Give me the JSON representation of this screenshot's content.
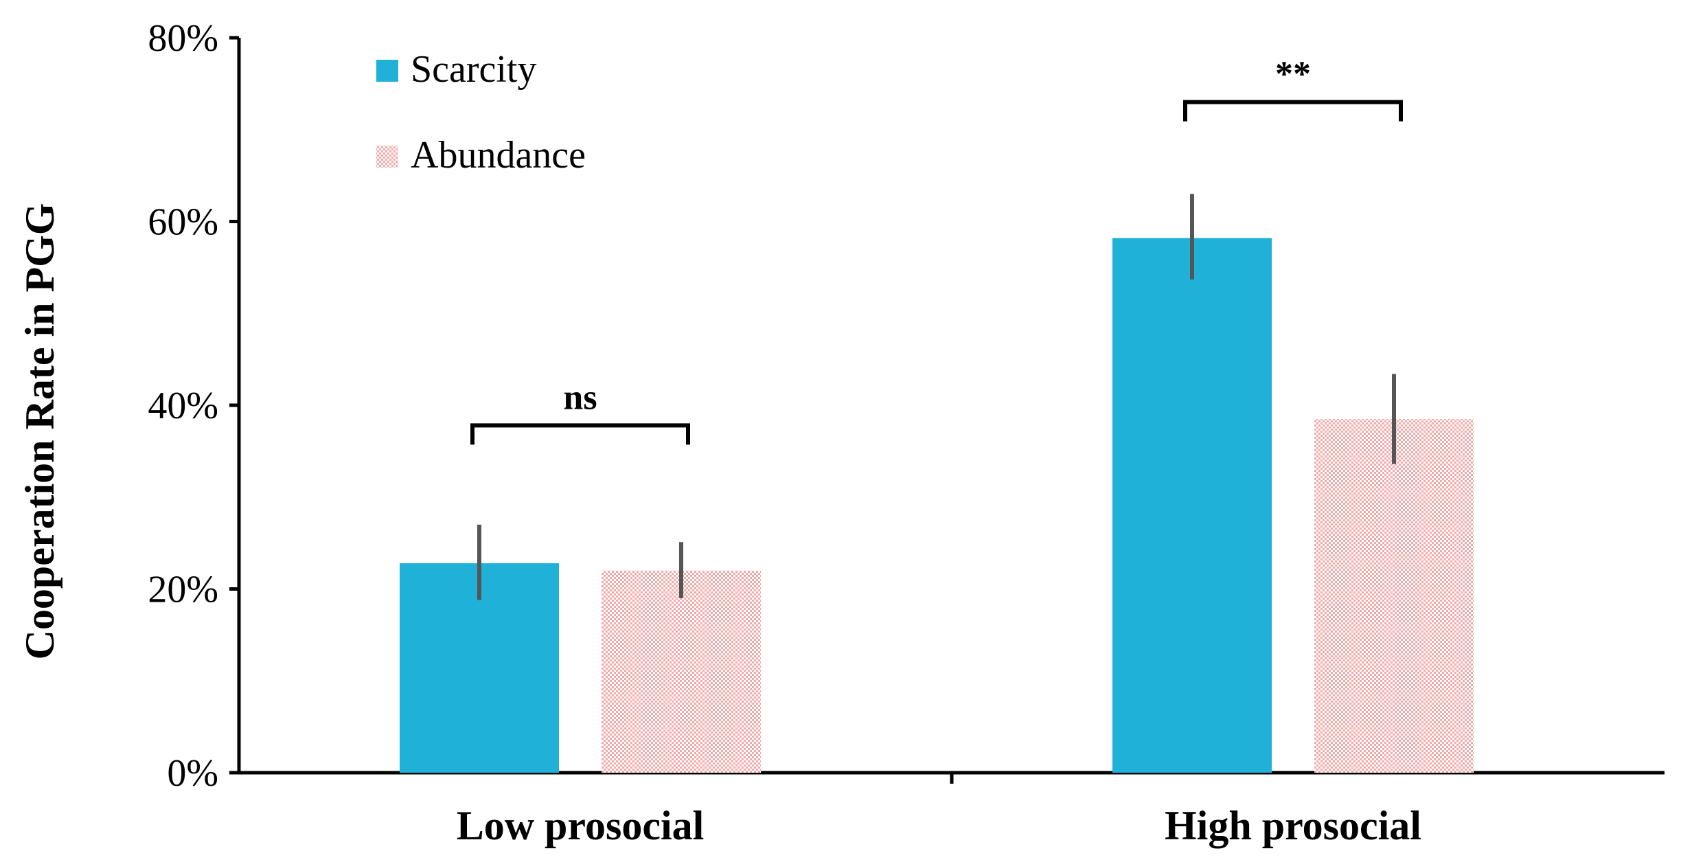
{
  "chart_data": {
    "type": "bar",
    "title": "",
    "xlabel": "",
    "ylabel": "Cooperation Rate in PGG",
    "ylim": [
      0,
      0.8
    ],
    "yticks": [
      {
        "value": 0.0,
        "label": "0%"
      },
      {
        "value": 0.2,
        "label": "20%"
      },
      {
        "value": 0.4,
        "label": "40%"
      },
      {
        "value": 0.6,
        "label": "60%"
      },
      {
        "value": 0.8,
        "label": "80%"
      }
    ],
    "categories": [
      "Low prosocial",
      "High prosocial"
    ],
    "series": [
      {
        "name": "Scarcity",
        "color": "#1FB1D8",
        "pattern": "solid",
        "values": [
          0.228,
          0.582
        ],
        "error_low": [
          0.188,
          0.537
        ],
        "error_high": [
          0.27,
          0.63
        ]
      },
      {
        "name": "Abundance",
        "color": "#F4A7A7",
        "pattern": "stipple",
        "values": [
          0.22,
          0.385
        ],
        "error_low": [
          0.19,
          0.336
        ],
        "error_high": [
          0.251,
          0.434
        ]
      }
    ],
    "legend": {
      "position": "top-left"
    },
    "significance": [
      {
        "category": "Low prosocial",
        "label": "ns",
        "bracket_value": 0.378
      },
      {
        "category": "High prosocial",
        "label": "**",
        "bracket_value": 0.73
      }
    ],
    "grid": false
  }
}
